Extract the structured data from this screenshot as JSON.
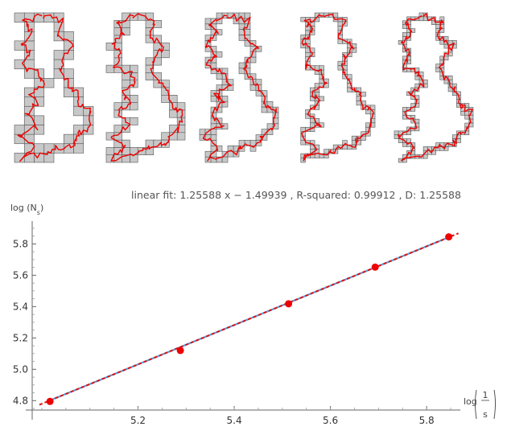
{
  "chart_data": [
    {
      "type": "other",
      "panels": 5,
      "panel_grid": [
        {
          "cells_x": 8,
          "cells_y": 16
        },
        {
          "cells_x": 10,
          "cells_y": 20
        },
        {
          "cells_x": 14,
          "cells_y": 27
        },
        {
          "cells_x": 17,
          "cells_y": 34
        },
        {
          "cells_x": 19,
          "cells_y": 38
        }
      ],
      "box_color": "#c8c8c8",
      "curve_color": "#ee0000"
    },
    {
      "type": "scatter",
      "title": "linear fit: 1.25588 x − 1.49939 , R-squared: 0.99912 , D: 1.25588",
      "xlabel": "log",
      "xlabel_fraction_num": "1",
      "xlabel_fraction_den": "s",
      "ylabel": "log (N",
      "ylabel_sub": "s",
      "ylabel_close": ")",
      "xlim": [
        4.98,
        5.87
      ],
      "ylim": [
        4.74,
        5.92
      ],
      "xticks": [
        "5.2",
        "5.4",
        "5.6",
        "5.8"
      ],
      "yticks": [
        "4.8",
        "5.0",
        "5.2",
        "5.4",
        "5.6",
        "5.8"
      ],
      "series": [
        {
          "x": [
            5.017,
            5.288,
            5.513,
            5.693,
            5.846
          ],
          "y": [
            4.795,
            5.12,
            5.418,
            5.652,
            5.845
          ]
        }
      ],
      "fit": {
        "slope": 1.25588,
        "intercept": -1.49939
      },
      "colors": {
        "points": "#ee0000",
        "fit_line": "#5b9bd5",
        "dashed": "#dd1111"
      }
    }
  ]
}
